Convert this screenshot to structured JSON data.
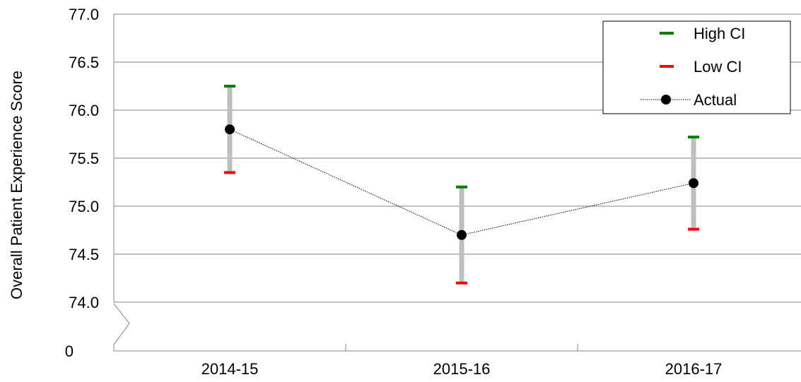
{
  "chart_data": {
    "type": "line",
    "ylabel": "Overall Patient Experience Score",
    "categories": [
      "2014-15",
      "2015-16",
      "2016-17"
    ],
    "ylim": [
      74.0,
      77.0
    ],
    "yticks": [
      "77.0",
      "76.5",
      "76.0",
      "75.5",
      "75.0",
      "74.5",
      "74.0"
    ],
    "axis_break_label": "0",
    "grid": true,
    "legend_position": "top-right",
    "series": [
      {
        "name": "High CI",
        "values": [
          76.25,
          75.2,
          75.72
        ],
        "color": "#008000",
        "marker": "dash"
      },
      {
        "name": "Low CI",
        "values": [
          75.35,
          74.2,
          74.76
        ],
        "color": "#ff0000",
        "marker": "dash"
      },
      {
        "name": "Actual",
        "values": [
          75.8,
          74.7,
          75.24
        ],
        "color": "#000000",
        "marker": "circle"
      }
    ],
    "error_bar_color": "#bfbfbf"
  }
}
